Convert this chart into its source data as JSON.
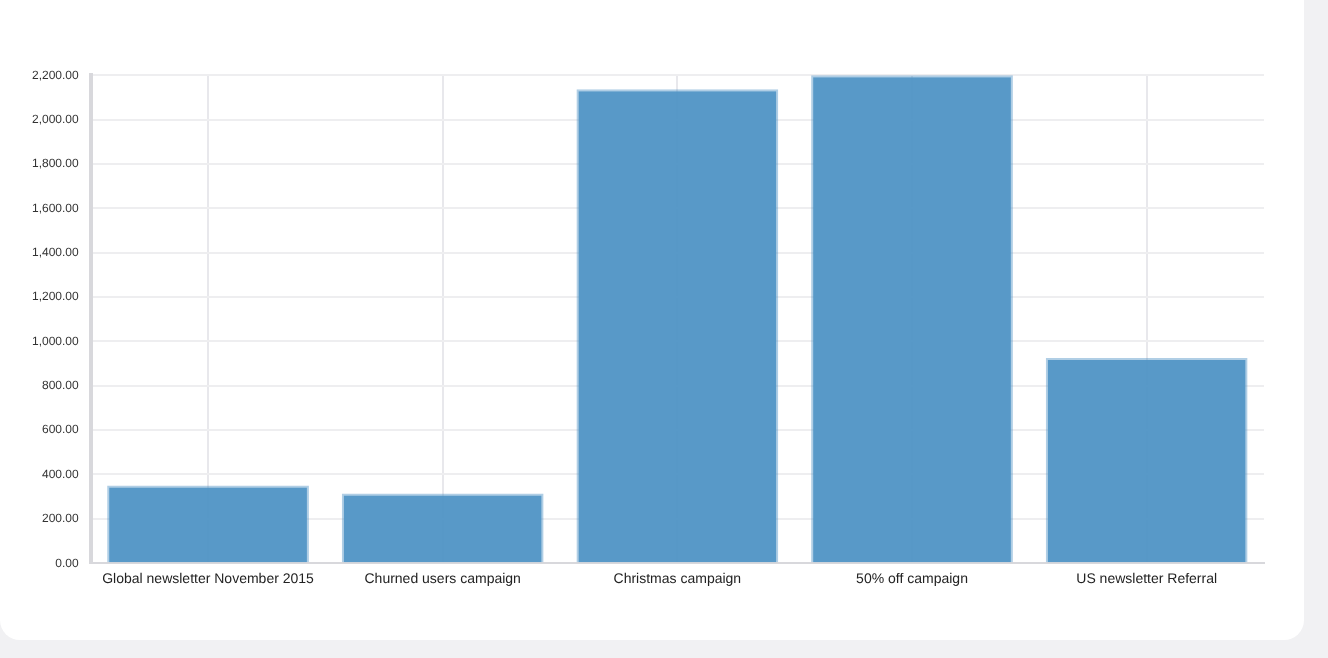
{
  "chart_data": {
    "type": "bar",
    "categories": [
      "Global newsletter November 2015",
      "Churned users campaign",
      "Christmas campaign",
      "50% off campaign",
      "US newsletter Referral"
    ],
    "values": [
      350,
      314,
      2137,
      2200,
      925
    ],
    "color": "#4f93c5",
    "ylim": [
      0,
      2200
    ],
    "yticks": [
      {
        "value": 0,
        "label": "0.00"
      },
      {
        "value": 200,
        "label": "200.00"
      },
      {
        "value": 400,
        "label": "400.00"
      },
      {
        "value": 600,
        "label": "600.00"
      },
      {
        "value": 800,
        "label": "800.00"
      },
      {
        "value": 1000,
        "label": "1,000.00"
      },
      {
        "value": 1200,
        "label": "1,200.00"
      },
      {
        "value": 1400,
        "label": "1,400.00"
      },
      {
        "value": 1600,
        "label": "1,600.00"
      },
      {
        "value": 1800,
        "label": "1,800.00"
      },
      {
        "value": 2000,
        "label": "2,000.00"
      },
      {
        "value": 2200,
        "label": "2,200.00"
      }
    ],
    "grid": true,
    "legend": false
  }
}
